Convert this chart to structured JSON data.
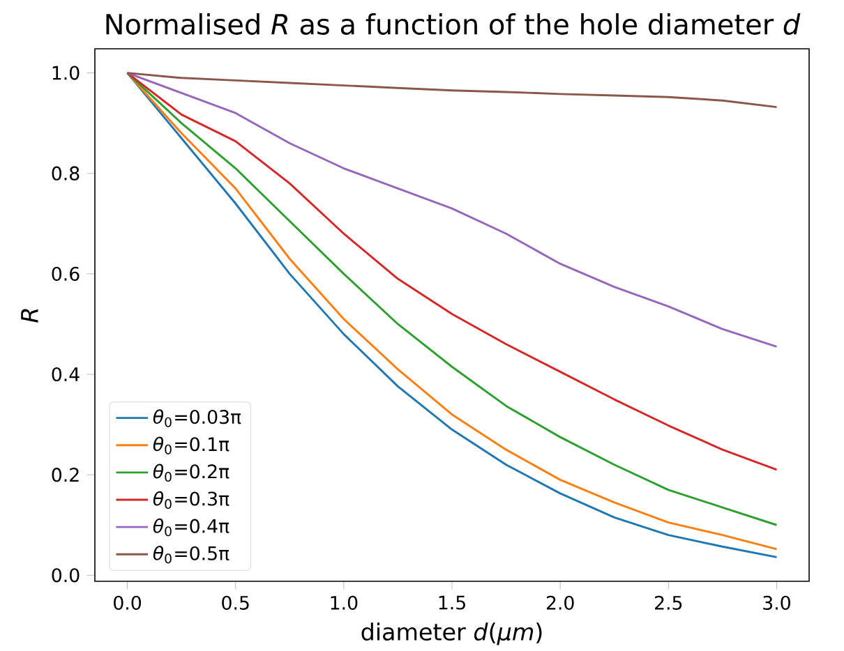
{
  "chart_data": {
    "type": "line",
    "title": "Normalised *R* as a function of the hole diameter *d*",
    "xlabel": "diameter *d*(*μm*)",
    "ylabel": "*R*",
    "x": [
      0,
      0.25,
      0.5,
      0.75,
      1.0,
      1.25,
      1.5,
      1.75,
      2.0,
      2.25,
      2.5,
      2.75,
      3.0
    ],
    "series": [
      {
        "name": "*θ*$_{0}$=0.03π",
        "color": "#1f77b4",
        "values": [
          1.0,
          0.87,
          0.74,
          0.6,
          0.48,
          0.376,
          0.29,
          0.22,
          0.163,
          0.115,
          0.08,
          0.057,
          0.036
        ]
      },
      {
        "name": "*θ*$_{0}$=0.1π",
        "color": "#ff7f0e",
        "values": [
          1.0,
          0.88,
          0.77,
          0.63,
          0.51,
          0.41,
          0.32,
          0.25,
          0.19,
          0.145,
          0.105,
          0.08,
          0.052
        ]
      },
      {
        "name": "*θ*$_{0}$=0.2π",
        "color": "#2ca02c",
        "values": [
          1.0,
          0.9,
          0.81,
          0.705,
          0.6,
          0.5,
          0.415,
          0.337,
          0.275,
          0.22,
          0.17,
          0.135,
          0.1
        ]
      },
      {
        "name": "*θ*$_{0}$=0.3π",
        "color": "#d62728",
        "values": [
          1.0,
          0.917,
          0.864,
          0.78,
          0.68,
          0.59,
          0.52,
          0.46,
          0.405,
          0.35,
          0.298,
          0.25,
          0.21
        ]
      },
      {
        "name": "*θ*$_{0}$=0.4π",
        "color": "#9467bd",
        "values": [
          1.0,
          0.96,
          0.92,
          0.86,
          0.81,
          0.77,
          0.73,
          0.68,
          0.62,
          0.574,
          0.535,
          0.49,
          0.455
        ]
      },
      {
        "name": "*θ*$_{0}$=0.5π",
        "color": "#8c564b",
        "values": [
          1.0,
          0.99,
          0.985,
          0.98,
          0.975,
          0.97,
          0.965,
          0.962,
          0.958,
          0.955,
          0.952,
          0.945,
          0.932
        ]
      }
    ],
    "xlim": [
      -0.15,
      3.15
    ],
    "ylim": [
      -0.012,
      1.048
    ],
    "xticks": [
      {
        "value": 0,
        "label": "0.0"
      },
      0.5,
      {
        "value": 1,
        "label": "1.0"
      },
      1.5,
      {
        "value": 2,
        "label": "2.0"
      },
      2.5,
      {
        "value": 3,
        "label": "3.0"
      }
    ],
    "yticks": [
      {
        "value": 0,
        "label": "0.0"
      },
      0.2,
      0.4,
      0.6,
      0.8,
      {
        "value": 1,
        "label": "1.0"
      }
    ],
    "legend": "bottom left",
    "grid": false,
    "marker": "none",
    "line_style": "solid"
  }
}
